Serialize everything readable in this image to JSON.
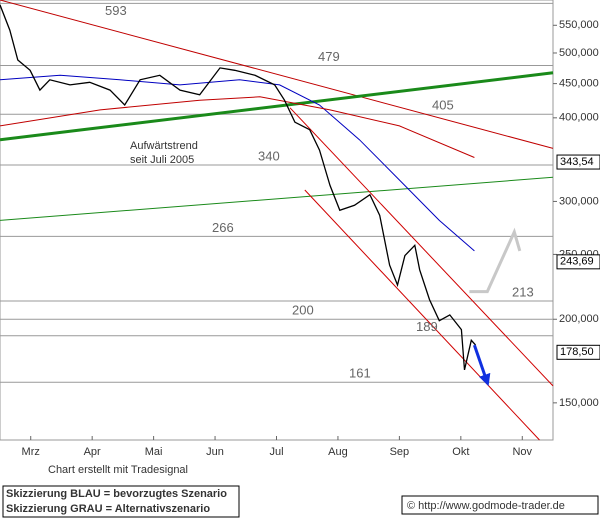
{
  "chart_data": {
    "type": "line",
    "log_y": true,
    "xlim": [
      3,
      12
    ],
    "ylim": [
      132000,
      600000
    ],
    "xticks": [
      {
        "value": 3.5,
        "label": "Mrz"
      },
      {
        "value": 4.5,
        "label": "Apr"
      },
      {
        "value": 5.5,
        "label": "Mai"
      },
      {
        "value": 6.5,
        "label": "Jun"
      },
      {
        "value": 7.5,
        "label": "Jul"
      },
      {
        "value": 8.5,
        "label": "Aug"
      },
      {
        "value": 9.5,
        "label": "Sep"
      },
      {
        "value": 10.5,
        "label": "Okt"
      },
      {
        "value": 11.5,
        "label": "Nov"
      }
    ],
    "yticks": [
      {
        "value": 550000,
        "label": "550,000"
      },
      {
        "value": 500000,
        "label": "500,000"
      },
      {
        "value": 450000,
        "label": "450,000"
      },
      {
        "value": 400000,
        "label": "400,000"
      },
      {
        "value": 300000,
        "label": "300,000"
      },
      {
        "value": 250000,
        "label": "250,000"
      },
      {
        "value": 200000,
        "label": "200,000"
      },
      {
        "value": 150000,
        "label": "150,000"
      }
    ],
    "series": [
      {
        "color": "#c00000",
        "width": 1,
        "x": [
          3,
          12
        ],
        "values": [
          600000,
          360000
        ]
      },
      {
        "color": "#1a8a1a",
        "width": 3,
        "x": [
          3,
          12
        ],
        "values": [
          371000,
          467000
        ]
      },
      {
        "color": "#1a8a1a",
        "width": 1,
        "x": [
          3,
          12
        ],
        "values": [
          281000,
          326000
        ]
      },
      {
        "color": "#d00000",
        "width": 1,
        "x": [
          7.72,
          12
        ],
        "values": [
          414000,
          159000
        ]
      },
      {
        "color": "#d00000",
        "width": 1,
        "x": [
          7.96,
          11.78
        ],
        "values": [
          312000,
          132000
        ]
      },
      {
        "color": "#0000c0",
        "width": 1,
        "x": [
          3,
          3.98,
          4.95,
          5.93,
          6.9,
          7.55,
          8.2,
          8.85,
          9.5,
          10.15,
          10.72
        ],
        "values": [
          456000,
          463000,
          456000,
          448000,
          456000,
          448000,
          418000,
          371000,
          323000,
          281000,
          253000
        ]
      },
      {
        "color": "#c00000",
        "width": 1,
        "x": [
          3,
          4.63,
          6.25,
          7.23,
          8.37,
          9.5,
          10.72
        ],
        "values": [
          389000,
          411000,
          425000,
          430000,
          411000,
          389000,
          349000
        ]
      },
      {
        "color": "#000000",
        "width": 1.3,
        "x": [
          3.0,
          3.16,
          3.29,
          3.49,
          3.65,
          3.81,
          4.14,
          4.46,
          4.79,
          5.03,
          5.28,
          5.6,
          5.93,
          6.25,
          6.58,
          6.82,
          7.15,
          7.47,
          7.63,
          7.8,
          8.04,
          8.2,
          8.37,
          8.53,
          8.77,
          9.02,
          9.18,
          9.34,
          9.47,
          9.59,
          9.75,
          9.83,
          9.99,
          10.15,
          10.32,
          10.51,
          10.56,
          10.67,
          10.74
        ],
        "values": [
          590000,
          541000,
          488000,
          471000,
          440000,
          456000,
          448000,
          452000,
          440000,
          418000,
          456000,
          463000,
          440000,
          433000,
          475000,
          471000,
          463000,
          448000,
          425000,
          394000,
          384000,
          358000,
          317000,
          291000,
          296000,
          307000,
          286000,
          241000,
          225000,
          249000,
          258000,
          237000,
          214000,
          199000,
          203000,
          193000,
          168000,
          186000,
          183000
        ]
      },
      {
        "color": "#c8c8c8",
        "width": 3,
        "x": [
          10.64,
          10.93,
          11.37,
          11.46
        ],
        "values": [
          220000,
          220000,
          270000,
          253000
        ]
      },
      {
        "color": "#1030e0",
        "width": 3,
        "arrow": true,
        "x": [
          10.72,
          10.92
        ],
        "values": [
          183000,
          162000
        ]
      }
    ],
    "levels": [
      {
        "value": 593000,
        "label": "593"
      },
      {
        "value": 479000,
        "label": "479"
      },
      {
        "value": 405000,
        "label": "405"
      },
      {
        "value": 340000,
        "label": "340"
      },
      {
        "value": 266000,
        "label": "266"
      },
      {
        "value": 213000,
        "label": "213"
      },
      {
        "value": 200000,
        "label": "200"
      },
      {
        "value": 189000,
        "label": "189"
      },
      {
        "value": 161000,
        "label": "161"
      }
    ],
    "price_boxes": [
      {
        "value": 343540,
        "label": "343,54"
      },
      {
        "value": 243690,
        "label": "243,69"
      },
      {
        "value": 178500,
        "label": "178,50"
      }
    ],
    "annotation": [
      "Aufwärtstrend",
      "seit Juli 2005"
    ],
    "source_note": "Chart erstellt mit Tradesignal",
    "footer_left": [
      "Skizzierung BLAU = bevorzugtes Szenario",
      "Skizzierung GRAU = Alternativszenario"
    ],
    "footer_right": "© http://www.godmode-trader.de"
  }
}
